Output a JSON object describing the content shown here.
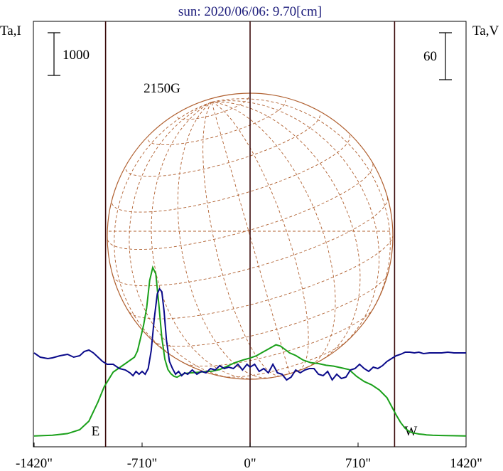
{
  "chart_data": {
    "type": "line",
    "title": "sun: 2020/06/06: 9.70[cm]",
    "ylabel_left": "Ta,I",
    "ylabel_right": "Ta,V",
    "scale_left": "1000",
    "scale_right": "60",
    "xlim": [
      -1420,
      1420
    ],
    "x_ticks": [
      {
        "value": -1420,
        "label": "-1420\""
      },
      {
        "value": -710,
        "label": "-710\""
      },
      {
        "value": 0,
        "label": "0\""
      },
      {
        "value": 710,
        "label": "710\""
      },
      {
        "value": 1420,
        "label": "1420\""
      }
    ],
    "limb_markers": [
      {
        "value": -950,
        "label": "E"
      },
      {
        "value": 0,
        "label": ""
      },
      {
        "value": 950,
        "label": "W"
      }
    ],
    "annotation": {
      "text": "2150G",
      "x": -580
    },
    "colors": {
      "intensity": "#1aa01a",
      "polarization": "#0a0a8a",
      "disk": "#b06030",
      "frame": "#000000",
      "limb_line": "#3a0a0a",
      "title": "#1a1a7a"
    },
    "series": [
      {
        "key": "intensity",
        "x": [
          -1420,
          -1300,
          -1200,
          -1120,
          -1060,
          -1000,
          -960,
          -900,
          -860,
          -820,
          -780,
          -760,
          -740,
          -720,
          -700,
          -680,
          -660,
          -640,
          -620,
          -600,
          -580,
          -560,
          -540,
          -520,
          -500,
          -480,
          -460,
          -430,
          -400,
          -360,
          -300,
          -250,
          -200,
          -150,
          -100,
          -50,
          0,
          40,
          80,
          120,
          170,
          200,
          230,
          260,
          300,
          350,
          400,
          450,
          500,
          550,
          600,
          650,
          700,
          750,
          800,
          850,
          900,
          930,
          960,
          990,
          1020,
          1050,
          1080,
          1110,
          1140,
          1160,
          1200,
          1260,
          1330,
          1420
        ],
        "values": [
          5,
          20,
          60,
          150,
          350,
          800,
          1150,
          1500,
          1600,
          1700,
          1800,
          1850,
          2000,
          2300,
          2600,
          3000,
          3650,
          3950,
          3800,
          3100,
          2300,
          1800,
          1560,
          1460,
          1400,
          1380,
          1420,
          1470,
          1480,
          1490,
          1510,
          1520,
          1560,
          1640,
          1720,
          1780,
          1830,
          1880,
          1960,
          2040,
          2140,
          2110,
          2030,
          1950,
          1890,
          1780,
          1720,
          1700,
          1660,
          1640,
          1600,
          1560,
          1400,
          1280,
          1200,
          1080,
          900,
          700,
          500,
          320,
          180,
          100,
          70,
          50,
          40,
          30,
          20,
          15,
          10,
          5
        ]
      },
      {
        "key": "polarization",
        "x": [
          -1420,
          -1380,
          -1330,
          -1300,
          -1250,
          -1200,
          -1160,
          -1120,
          -1090,
          -1060,
          -1030,
          -1000,
          -970,
          -940,
          -900,
          -860,
          -820,
          -790,
          -770,
          -750,
          -730,
          -710,
          -690,
          -670,
          -650,
          -630,
          -610,
          -595,
          -580,
          -565,
          -550,
          -530,
          -510,
          -490,
          -470,
          -450,
          -430,
          -410,
          -380,
          -350,
          -320,
          -290,
          -260,
          -230,
          -200,
          -170,
          -140,
          -110,
          -80,
          -50,
          -20,
          0,
          30,
          60,
          90,
          120,
          150,
          180,
          210,
          240,
          270,
          300,
          330,
          360,
          390,
          420,
          450,
          480,
          510,
          540,
          570,
          600,
          630,
          660,
          690,
          720,
          750,
          780,
          810,
          840,
          870,
          900,
          930,
          960,
          990,
          1020,
          1050,
          1080,
          1110,
          1140,
          1180,
          1220,
          1260,
          1300,
          1340,
          1380,
          1420
        ],
        "values": [
          2,
          -4,
          -6,
          -5,
          -2,
          0,
          -4,
          -2,
          4,
          6,
          2,
          -4,
          -10,
          -14,
          -14,
          -20,
          -22,
          -26,
          -30,
          -24,
          -28,
          -24,
          -28,
          -20,
          5,
          50,
          85,
          92,
          88,
          60,
          20,
          -10,
          -20,
          -28,
          -24,
          -30,
          -26,
          -28,
          -22,
          -28,
          -24,
          -26,
          -20,
          -22,
          -16,
          -20,
          -18,
          -20,
          -14,
          -22,
          -14,
          -18,
          -14,
          -24,
          -20,
          -26,
          -14,
          -26,
          -28,
          -36,
          -32,
          -22,
          -26,
          -22,
          -20,
          -20,
          -28,
          -30,
          -24,
          -36,
          -28,
          -34,
          -32,
          -22,
          -20,
          -14,
          -20,
          -24,
          -18,
          -20,
          -16,
          -10,
          -6,
          -2,
          0,
          3,
          3,
          2,
          3,
          1,
          2,
          2,
          2,
          3,
          2,
          2,
          2
        ]
      }
    ]
  }
}
